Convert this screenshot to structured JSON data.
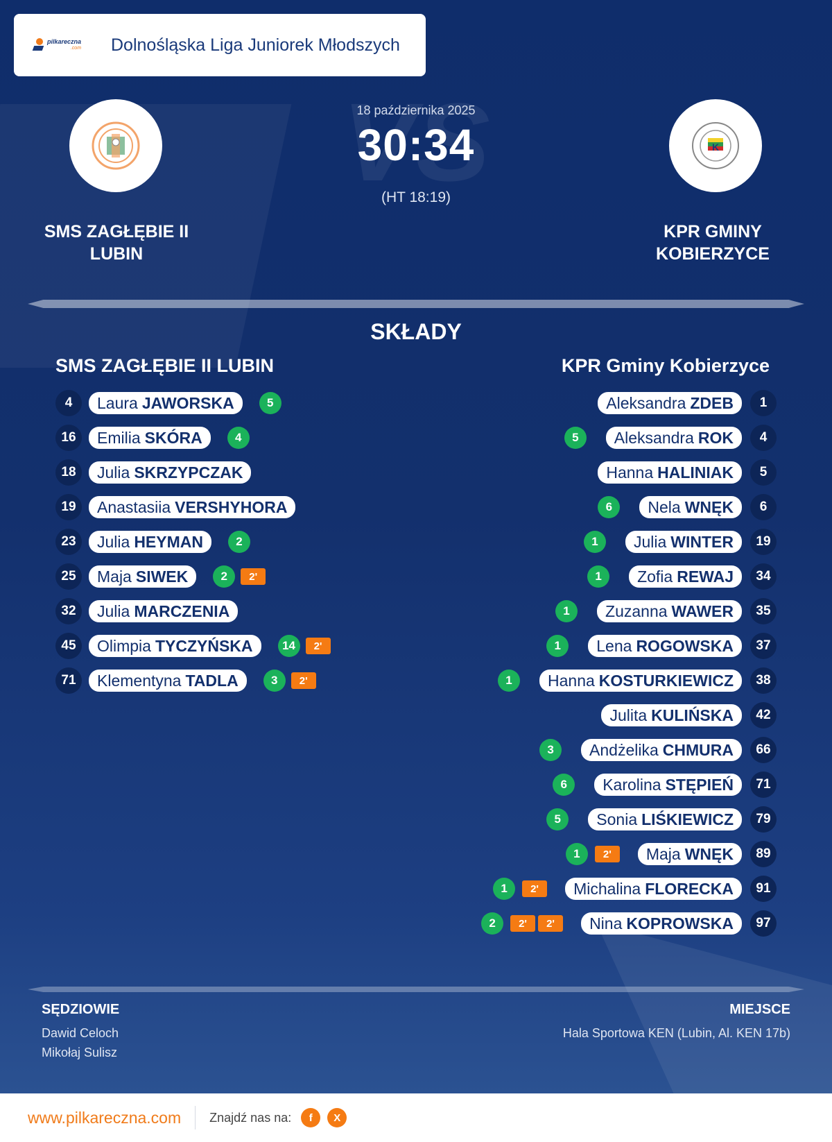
{
  "header": {
    "logo_text": "pilkareczna",
    "logo_sub": ".com",
    "league": "Dolnośląska Liga Juniorek Młodszych"
  },
  "match": {
    "date": "18 października 2025",
    "score": "30:34",
    "halftime": "(HT 18:19)",
    "vs_watermark": "VS",
    "home_team": "SMS ZAGŁĘBIE II\nLUBIN",
    "away_team": "KPR GMINY\nKOBIERZYCE",
    "home_logo_text": "SMS ZAGŁĘBIE LUBIN",
    "away_logo_text": "KLUB PIŁKI RĘCZNEJ GMINY KOBIERZYCE"
  },
  "squads": {
    "title": "SKŁADY",
    "home_title": "SMS ZAGŁĘBIE II LUBIN",
    "away_title": "KPR Gminy Kobierzyce",
    "home": [
      {
        "num": "4",
        "first": "Laura",
        "last": "JAWORSKA",
        "goals": "5",
        "susp": []
      },
      {
        "num": "16",
        "first": "Emilia",
        "last": "SKÓRA",
        "goals": "4",
        "susp": []
      },
      {
        "num": "18",
        "first": "Julia",
        "last": "SKRZYPCZAK",
        "goals": "",
        "susp": []
      },
      {
        "num": "19",
        "first": "Anastasiia",
        "last": "VERSHYHORA",
        "goals": "",
        "susp": []
      },
      {
        "num": "23",
        "first": "Julia",
        "last": "HEYMAN",
        "goals": "2",
        "susp": []
      },
      {
        "num": "25",
        "first": "Maja",
        "last": "SIWEK",
        "goals": "2",
        "susp": [
          "2'"
        ]
      },
      {
        "num": "32",
        "first": "Julia",
        "last": "MARCZENIA",
        "goals": "",
        "susp": []
      },
      {
        "num": "45",
        "first": "Olimpia",
        "last": "TYCZYŃSKA",
        "goals": "14",
        "susp": [
          "2'"
        ]
      },
      {
        "num": "71",
        "first": "Klementyna",
        "last": "TADLA",
        "goals": "3",
        "susp": [
          "2'"
        ]
      }
    ],
    "away": [
      {
        "num": "1",
        "first": "Aleksandra",
        "last": "ZDEB",
        "goals": "",
        "susp": []
      },
      {
        "num": "4",
        "first": "Aleksandra",
        "last": "ROK",
        "goals": "5",
        "susp": []
      },
      {
        "num": "5",
        "first": "Hanna",
        "last": "HALINIAK",
        "goals": "",
        "susp": []
      },
      {
        "num": "6",
        "first": "Nela",
        "last": "WNĘK",
        "goals": "6",
        "susp": []
      },
      {
        "num": "19",
        "first": "Julia",
        "last": "WINTER",
        "goals": "1",
        "susp": []
      },
      {
        "num": "34",
        "first": "Zofia",
        "last": "REWAJ",
        "goals": "1",
        "susp": []
      },
      {
        "num": "35",
        "first": "Zuzanna",
        "last": "WAWER",
        "goals": "1",
        "susp": []
      },
      {
        "num": "37",
        "first": "Lena",
        "last": "ROGOWSKA",
        "goals": "1",
        "susp": []
      },
      {
        "num": "38",
        "first": "Hanna",
        "last": "KOSTURKIEWICZ",
        "goals": "1",
        "susp": []
      },
      {
        "num": "42",
        "first": "Julita",
        "last": "KULIŃSKA",
        "goals": "",
        "susp": []
      },
      {
        "num": "66",
        "first": "Andżelika",
        "last": "CHMURA",
        "goals": "3",
        "susp": []
      },
      {
        "num": "71",
        "first": "Karolina",
        "last": "STĘPIEŃ",
        "goals": "6",
        "susp": []
      },
      {
        "num": "79",
        "first": "Sonia",
        "last": "LIŚKIEWICZ",
        "goals": "5",
        "susp": []
      },
      {
        "num": "89",
        "first": "Maja",
        "last": "WNĘK",
        "goals": "1",
        "susp": [
          "2'"
        ]
      },
      {
        "num": "91",
        "first": "Michalina",
        "last": "FLORECKA",
        "goals": "1",
        "susp": [
          "2'"
        ]
      },
      {
        "num": "97",
        "first": "Nina",
        "last": "KOPROWSKA",
        "goals": "2",
        "susp": [
          "2'",
          "2'"
        ]
      }
    ]
  },
  "officials": {
    "refs_label": "SĘDZIOWIE",
    "refs": [
      "Dawid Celoch",
      "Mikołaj Sulisz"
    ],
    "venue_label": "MIEJSCE",
    "venue": "Hala Sportowa KEN (Lubin, Al. KEN 17b)"
  },
  "footer": {
    "site": "www.pilkareczna.com",
    "find_us": "Znajdź nas na:",
    "social": [
      {
        "icon": "facebook-icon",
        "glyph": "f"
      },
      {
        "icon": "x-icon",
        "glyph": "X"
      }
    ]
  },
  "colors": {
    "accent": "#f57b13",
    "goal": "#1bb25a",
    "navy": "#13306d"
  }
}
